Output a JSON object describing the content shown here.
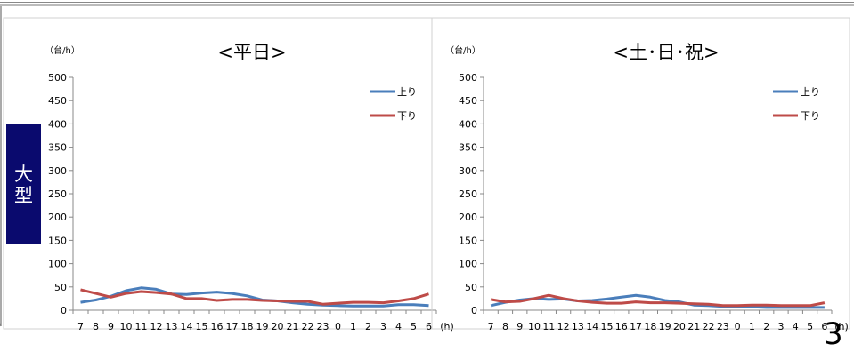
{
  "sidebar": {
    "label_line1": "大",
    "label_line2": "型"
  },
  "page_number": "3",
  "chart_data": [
    {
      "type": "line",
      "title": "<平日>",
      "ylabel": "（台/h）",
      "xlabel": "(h)",
      "ylim": [
        0,
        500
      ],
      "yticks": [
        0,
        50,
        100,
        150,
        200,
        250,
        300,
        350,
        400,
        450,
        500
      ],
      "categories": [
        "7",
        "8",
        "9",
        "10",
        "11",
        "12",
        "13",
        "14",
        "15",
        "16",
        "17",
        "18",
        "19",
        "20",
        "21",
        "22",
        "23",
        "0",
        "1",
        "2",
        "3",
        "4",
        "5",
        "6"
      ],
      "legend_position": "top-right",
      "series": [
        {
          "name": "上り",
          "color": "#4a7ebb",
          "values": [
            17,
            22,
            30,
            42,
            48,
            45,
            35,
            34,
            37,
            39,
            36,
            31,
            22,
            20,
            16,
            13,
            11,
            10,
            9,
            9,
            9,
            12,
            12,
            10
          ]
        },
        {
          "name": "下り",
          "color": "#be4b48",
          "values": [
            44,
            36,
            28,
            36,
            40,
            38,
            35,
            25,
            25,
            21,
            23,
            23,
            21,
            20,
            19,
            19,
            13,
            15,
            17,
            17,
            16,
            20,
            25,
            35
          ]
        }
      ]
    },
    {
      "type": "line",
      "title": "<土･日･祝>",
      "ylabel": "（台/h）",
      "xlabel": "(h)",
      "ylim": [
        0,
        500
      ],
      "yticks": [
        0,
        50,
        100,
        150,
        200,
        250,
        300,
        350,
        400,
        450,
        500
      ],
      "categories": [
        "7",
        "8",
        "9",
        "10",
        "11",
        "12",
        "13",
        "14",
        "15",
        "16",
        "17",
        "18",
        "19",
        "20",
        "21",
        "22",
        "23",
        "0",
        "1",
        "2",
        "3",
        "4",
        "5",
        "6"
      ],
      "legend_position": "top-right",
      "series": [
        {
          "name": "上り",
          "color": "#4a7ebb",
          "values": [
            10,
            17,
            22,
            25,
            23,
            24,
            20,
            21,
            24,
            28,
            32,
            28,
            21,
            18,
            11,
            10,
            8,
            8,
            7,
            6,
            6,
            6,
            6,
            6
          ]
        },
        {
          "name": "下り",
          "color": "#be4b48",
          "values": [
            23,
            18,
            19,
            25,
            32,
            25,
            20,
            17,
            15,
            15,
            18,
            16,
            16,
            15,
            14,
            13,
            10,
            10,
            11,
            11,
            10,
            10,
            10,
            16
          ]
        }
      ]
    }
  ]
}
